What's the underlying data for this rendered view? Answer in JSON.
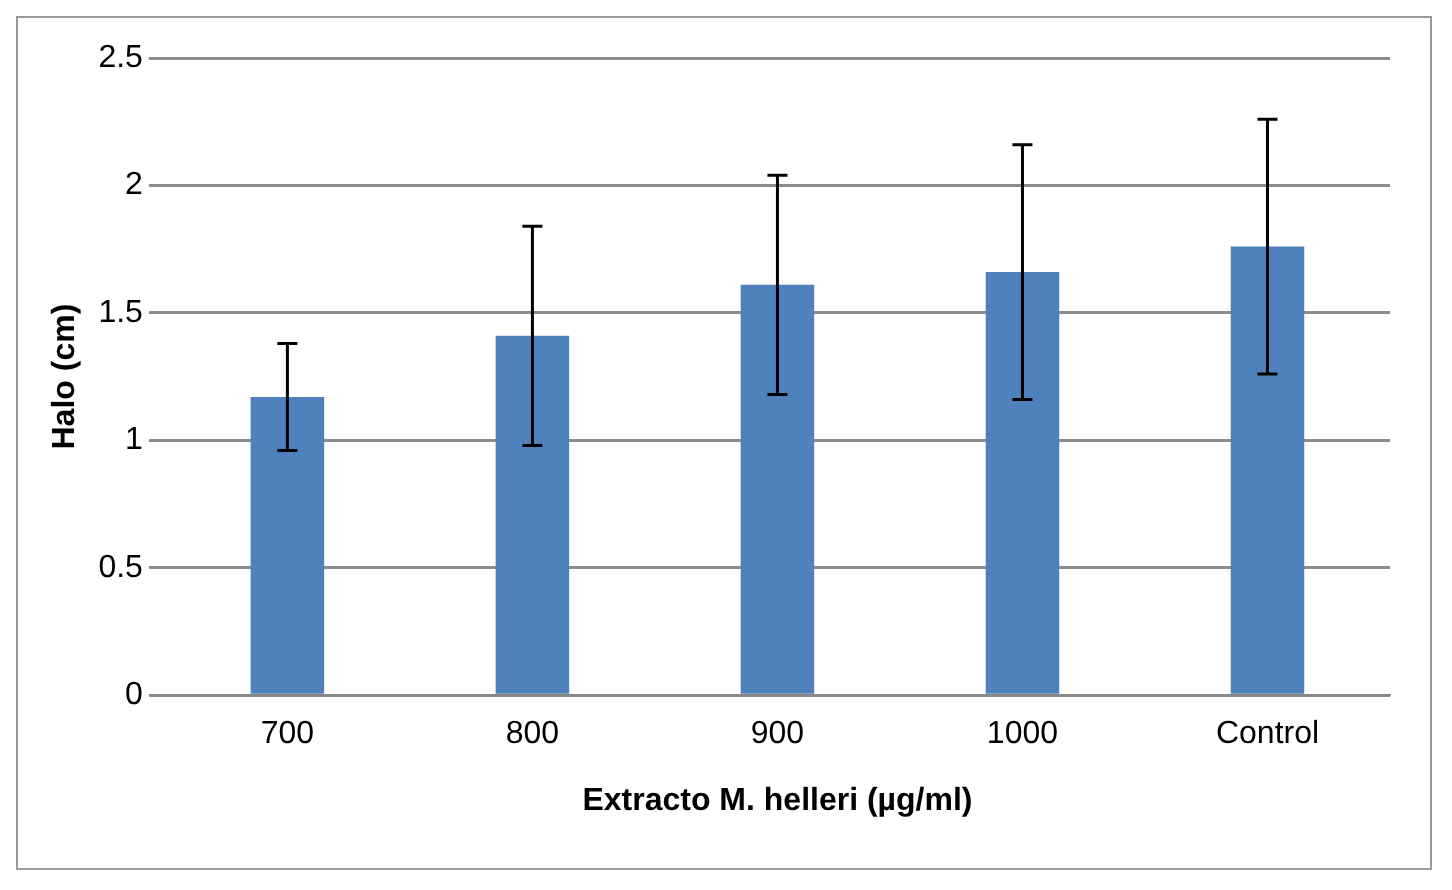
{
  "chart_data": {
    "type": "bar",
    "xlabel": "Extracto M. helleri (µg/ml)",
    "ylabel": "Halo (cm)",
    "categories": [
      "700",
      "800",
      "900",
      "1000",
      "Control"
    ],
    "values": [
      1.17,
      1.41,
      1.61,
      1.66,
      1.76
    ],
    "errors": [
      0.21,
      0.43,
      0.43,
      0.5,
      0.5
    ],
    "color": "#4f81bd",
    "ylim": [
      0,
      2.5
    ],
    "yticks": [
      0,
      0.5,
      1,
      1.5,
      2,
      2.5
    ],
    "grid": "y",
    "legend": false
  }
}
